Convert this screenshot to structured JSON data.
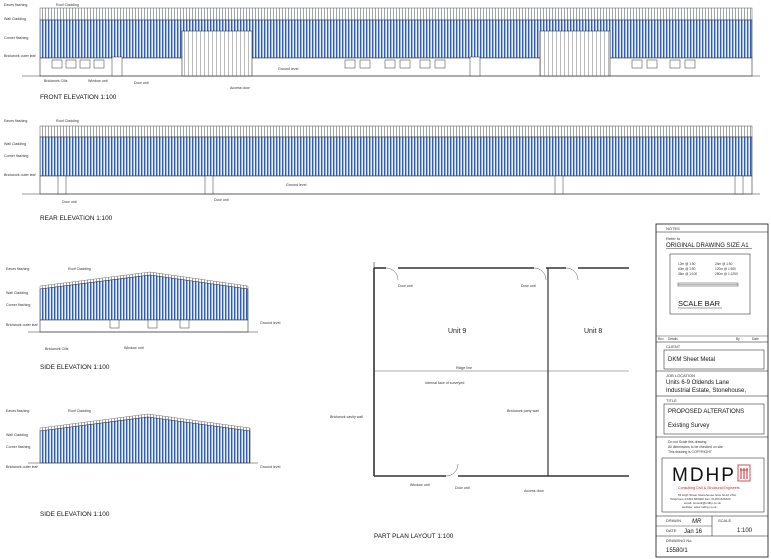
{
  "views": {
    "front": {
      "title": "FRONT ELEVATION 1:100",
      "labels": {
        "eaves_flashing": "Eaves flashing",
        "roof_cladding": "Roof Cladding",
        "wall_cladding": "Wall Cladding",
        "corner_flashing": "Corner flashing",
        "brickwork": "Brickwork outer leaf",
        "brickwork_cills": "Brickwork Cills",
        "window_unit": "Window unit",
        "door_unit": "Door unit",
        "roller_door": "Access door",
        "ground_level": "Ground level"
      }
    },
    "rear": {
      "title": "REAR ELEVATION 1:100",
      "labels": {
        "eaves_flashing": "Eaves flashing",
        "roof_cladding": "Roof Cladding",
        "wall_cladding": "Wall Cladding",
        "corner_flashing": "Corner flashing",
        "brickwork": "Brickwork outer leaf",
        "door_unit_1": "Door unit",
        "door_unit_2": "Door unit",
        "ground_level": "Ground level"
      }
    },
    "side1": {
      "title": "SIDE ELEVATION 1:100",
      "labels": {
        "eaves_flashing": "Eaves flashing",
        "roof_cladding": "Roof Cladding",
        "wall_cladding": "Wall Cladding",
        "corner_flashing": "Corner flashing",
        "brickwork": "Brickwork outer leaf",
        "brickwork_cills": "Brickwork Cills",
        "window_unit": "Window unit",
        "ground_level": "Ground level"
      }
    },
    "side2": {
      "title": "SIDE ELEVATION 1:100",
      "labels": {
        "eaves_flashing": "Eaves flashing",
        "roof_cladding": "Roof Cladding",
        "wall_cladding": "Wall Cladding",
        "corner_flashing": "Corner flashing",
        "brickwork": "Brickwork outer leaf",
        "ground_level": "Ground level"
      }
    },
    "plan": {
      "title": "PART PLAN LAYOUT 1:100",
      "unit_left": "Unit 9",
      "unit_right": "Unit 8",
      "ridge_line": "Ridge line",
      "internal_face": "Internal face of surveyed",
      "door_unit_1": "Door unit",
      "door_unit_2": "Door unit",
      "door_unit_3": "Door unit",
      "party_wall_left": "Brickwork cavity wall",
      "party_wall_mid": "Brickwork party wall",
      "window_unit": "Window unit",
      "access_door": "Access door"
    }
  },
  "title_block": {
    "notes_header": "NOTES",
    "refer_to": "Refer to",
    "original_size": "ORIGINAL DRAWING SIZE A1",
    "scale_bar_title": "SCALE BAR",
    "scale_left": [
      "12m @ 1:50",
      "60m @ 1:50",
      "36m @ 1:100"
    ],
    "scale_right": [
      "24m @ 1:50",
      "120m @ 1:500",
      "250m @ 1:1250"
    ],
    "rev_columns": [
      "Rev",
      "Details",
      "By",
      "Date"
    ],
    "client_header": "CLIENT",
    "client": "DKM Sheet Metal",
    "job_header": "JOB LOCATION",
    "job_line1": "Units 6-9 Oldends Lane",
    "job_line2": "Industrial Estate, Stonehouse,",
    "title_header": "TITLE",
    "title_line1": "PROPOSED ALTERATIONS",
    "title_line2": "Existing Survey",
    "disclaimer": [
      "Do not Scale this drawing",
      "All dimensions to be checked on site",
      "This drawing is COPYRIGHT"
    ],
    "company_name": "MDHP",
    "company_sub": "Consulting Civil & Structural Engineers",
    "company_addr": [
      "52 High Street Stonehouse Glos GL10 2NA",
      "Telephone 01453 826000   Fax: 01453 826424",
      "email: consult@mdhp.co.uk",
      "website: www.mdhp.co.uk"
    ],
    "drawn_label": "DRAWN",
    "drawn_value": "MR",
    "scale_label": "SCALE",
    "scale_value": "1:100",
    "date_label": "DATE",
    "date_value": "Jan 16",
    "drawing_no_label": "DRAWING No.",
    "drawing_no_value": "15580/1"
  },
  "colors": {
    "cladding_blue": "#2f5fae",
    "cladding_light": "#e8eef8",
    "roof_grey": "#8a8f98",
    "logo_red": "#c0282d"
  }
}
